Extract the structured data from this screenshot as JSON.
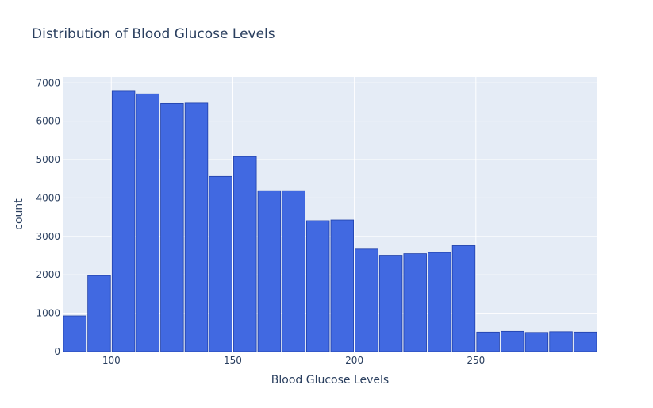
{
  "chart_data": {
    "type": "bar",
    "title": "Distribution of Blood Glucose Levels",
    "xlabel": "Blood Glucose Levels",
    "ylabel": "count",
    "bin_width": 10,
    "xlim": [
      80,
      300
    ],
    "ylim": [
      0,
      7150
    ],
    "x_ticks": [
      100,
      150,
      200,
      250
    ],
    "y_ticks": [
      0,
      1000,
      2000,
      3000,
      4000,
      5000,
      6000,
      7000
    ],
    "bins": [
      {
        "x0": 80,
        "x1": 90,
        "count": 930
      },
      {
        "x0": 90,
        "x1": 100,
        "count": 1980
      },
      {
        "x0": 100,
        "x1": 110,
        "count": 6780
      },
      {
        "x0": 110,
        "x1": 120,
        "count": 6710
      },
      {
        "x0": 120,
        "x1": 130,
        "count": 6460
      },
      {
        "x0": 130,
        "x1": 140,
        "count": 6470
      },
      {
        "x0": 140,
        "x1": 150,
        "count": 4560
      },
      {
        "x0": 150,
        "x1": 160,
        "count": 5080
      },
      {
        "x0": 160,
        "x1": 170,
        "count": 4190
      },
      {
        "x0": 170,
        "x1": 180,
        "count": 4190
      },
      {
        "x0": 180,
        "x1": 190,
        "count": 3410
      },
      {
        "x0": 190,
        "x1": 200,
        "count": 3430
      },
      {
        "x0": 200,
        "x1": 210,
        "count": 2670
      },
      {
        "x0": 210,
        "x1": 220,
        "count": 2510
      },
      {
        "x0": 220,
        "x1": 230,
        "count": 2550
      },
      {
        "x0": 230,
        "x1": 240,
        "count": 2580
      },
      {
        "x0": 240,
        "x1": 250,
        "count": 2760
      },
      {
        "x0": 250,
        "x1": 260,
        "count": 510
      },
      {
        "x0": 260,
        "x1": 270,
        "count": 530
      },
      {
        "x0": 270,
        "x1": 280,
        "count": 500
      },
      {
        "x0": 280,
        "x1": 290,
        "count": 520
      },
      {
        "x0": 290,
        "x1": 300,
        "count": 510
      }
    ],
    "bar_color": "#4169e1",
    "bar_edge_color": "#1f3fa8",
    "plot_bg": "#e5ecf6",
    "grid": true,
    "grid_color": "#ffffff",
    "text_color": "#2a3f5f"
  }
}
